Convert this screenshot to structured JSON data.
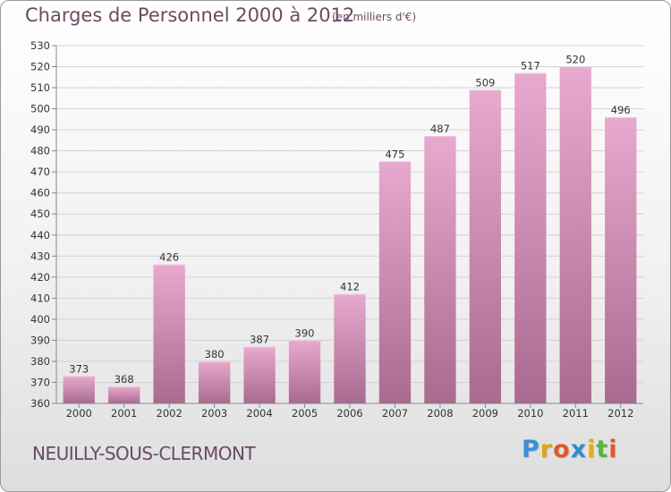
{
  "title": "Charges de Personnel 2000 à 2012",
  "subtitle": "(en milliers d'€)",
  "town": "NEUILLY-SOUS-CLERMONT",
  "logo": {
    "letters": [
      "P",
      "r",
      "o",
      "x",
      "i",
      "t",
      "i"
    ],
    "colors": [
      "#3b8fd6",
      "#e0a21b",
      "#e0572b",
      "#2d8fd1",
      "#e8aa1a",
      "#58b247",
      "#e0572b"
    ]
  },
  "colors": {
    "bar_top": "#e8a9cf",
    "bar_bottom": "#a96a90",
    "grid": "#d2d2d2",
    "axis": "#888888",
    "text": "#6b4a63"
  },
  "chart_data": {
    "type": "bar",
    "title": "Charges de Personnel 2000 à 2012",
    "subtitle": "(en milliers d'€)",
    "categories": [
      "2000",
      "2001",
      "2002",
      "2003",
      "2004",
      "2005",
      "2006",
      "2007",
      "2008",
      "2009",
      "2010",
      "2011",
      "2012"
    ],
    "values": [
      373,
      368,
      426,
      380,
      387,
      390,
      412,
      475,
      487,
      509,
      517,
      520,
      496
    ],
    "value_labels": [
      "373",
      "368",
      "426",
      "380",
      "387",
      "390",
      "412",
      "475",
      "487",
      "509",
      "517",
      "520",
      "496"
    ],
    "ylim": [
      360,
      530
    ],
    "yticks": [
      360,
      370,
      380,
      390,
      400,
      410,
      420,
      430,
      440,
      450,
      460,
      470,
      480,
      490,
      500,
      510,
      520,
      530
    ],
    "grid": true,
    "xlabel": "",
    "ylabel": ""
  }
}
